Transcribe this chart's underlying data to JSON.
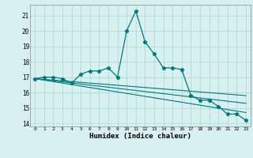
{
  "title": "",
  "xlabel": "Humidex (Indice chaleur)",
  "ylabel": "",
  "background_color": "#d8f0f0",
  "grid_color": "#b0d8d8",
  "line_color": "#007878",
  "xlim": [
    -0.5,
    23.5
  ],
  "ylim": [
    13.8,
    21.7
  ],
  "yticks": [
    14,
    15,
    16,
    17,
    18,
    19,
    20,
    21
  ],
  "xticks": [
    0,
    1,
    2,
    3,
    4,
    5,
    6,
    7,
    8,
    9,
    10,
    11,
    12,
    13,
    14,
    15,
    16,
    17,
    18,
    19,
    20,
    21,
    22,
    23
  ],
  "series1_x": [
    0,
    1,
    2,
    3,
    4,
    5,
    6,
    7,
    8,
    9,
    10,
    11,
    12,
    13,
    14,
    15,
    16,
    17,
    18,
    19,
    20,
    21,
    22,
    23
  ],
  "series1_y": [
    16.9,
    17.0,
    17.0,
    16.9,
    16.6,
    17.2,
    17.4,
    17.4,
    17.6,
    17.0,
    20.0,
    21.3,
    19.3,
    18.5,
    17.6,
    17.6,
    17.5,
    15.8,
    15.5,
    15.5,
    15.1,
    14.6,
    14.6,
    14.2
  ],
  "trend1_x": [
    0,
    23
  ],
  "trend1_y": [
    16.9,
    15.8
  ],
  "trend2_x": [
    0,
    23
  ],
  "trend2_y": [
    16.9,
    15.3
  ],
  "trend3_x": [
    0,
    23
  ],
  "trend3_y": [
    16.9,
    14.7
  ]
}
